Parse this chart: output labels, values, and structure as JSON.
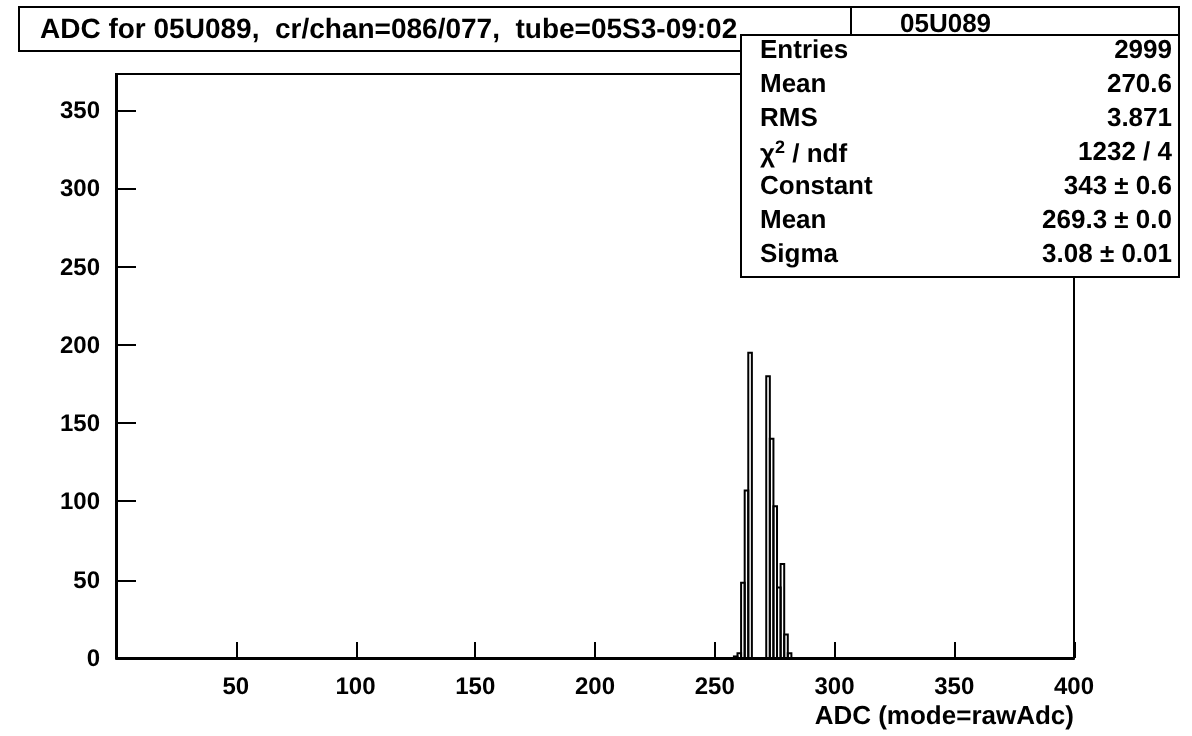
{
  "chart_data": {
    "type": "histogram",
    "title": "ADC for 05U089,  cr/chan=086/077,  tube=05S3-09:02",
    "xlabel": "ADC (mode=rawAdc)",
    "bins": [
      258,
      259.5,
      261,
      262.5,
      264,
      265.5,
      267,
      268.5,
      270,
      271.5,
      273,
      274.5,
      276,
      277.5,
      279,
      280.5,
      282
    ],
    "values": [
      1,
      3,
      48,
      107,
      195,
      null,
      null,
      null,
      null,
      180,
      140,
      97,
      45,
      60,
      15,
      3
    ],
    "color": "#000000",
    "xlim": [
      0,
      400
    ],
    "xticks": [
      50,
      100,
      150,
      200,
      250,
      300,
      350,
      400
    ],
    "ylim": [
      0,
      373
    ],
    "yticks": [
      0,
      50,
      100,
      150,
      200,
      250,
      300,
      350
    ],
    "grid": false,
    "annotations": [
      "05U089",
      "Entries",
      "2999",
      "Mean",
      "270.6",
      "RMS",
      "3.871",
      "χ$^{2}$ / ndf",
      "1232 / 4",
      "Constant",
      "343 ± 0.6",
      "Mean",
      "269.3 ± 0.0",
      "Sigma",
      "3.08 ± 0.01"
    ]
  }
}
